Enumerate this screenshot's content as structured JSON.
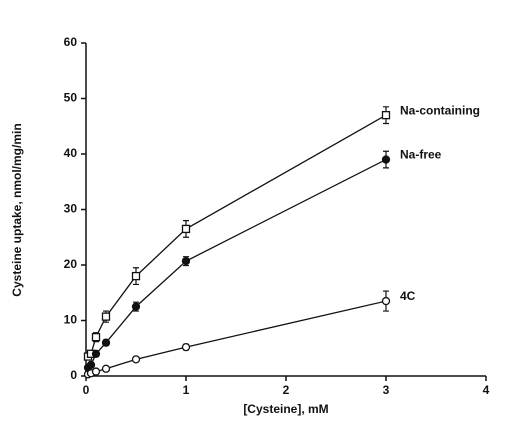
{
  "chart_data": {
    "type": "line",
    "x_label": "[Cysteine], mM",
    "y_label": "Cysteine uptake, nmol/mg/min",
    "xlim": [
      0,
      4
    ],
    "xticks": [
      0,
      1,
      2,
      3,
      4
    ],
    "ylim": [
      0,
      60
    ],
    "yticks": [
      0,
      10,
      20,
      30,
      40,
      50,
      60
    ],
    "grid": false,
    "legend": "end-labels",
    "series": [
      {
        "name": "Na-containing",
        "color": "#111111",
        "marker": "square-open",
        "x": [
          0.02,
          0.05,
          0.1,
          0.2,
          0.5,
          1,
          3
        ],
        "values": [
          3.5,
          4,
          7,
          10.7,
          18,
          26.5,
          47
        ],
        "errors": [
          0.5,
          0.5,
          0.8,
          1,
          1.5,
          1.5,
          1.5
        ]
      },
      {
        "name": "Na-free",
        "color": "#111111",
        "marker": "circle-filled",
        "x": [
          0.02,
          0.05,
          0.1,
          0.2,
          0.5,
          1,
          3
        ],
        "values": [
          1.5,
          2,
          4,
          6,
          12.5,
          20.7,
          39
        ],
        "errors": [
          0.3,
          0.3,
          0.5,
          0.5,
          0.8,
          0.8,
          1.5
        ]
      },
      {
        "name": "4C",
        "color": "#111111",
        "marker": "circle-open",
        "x": [
          0.02,
          0.05,
          0.1,
          0.2,
          0.5,
          1,
          3
        ],
        "values": [
          0.3,
          0.5,
          0.8,
          1.3,
          3,
          5.2,
          13.5
        ],
        "errors": [
          0.2,
          0.2,
          0.2,
          0.3,
          0.4,
          0.5,
          1.8
        ]
      }
    ]
  }
}
